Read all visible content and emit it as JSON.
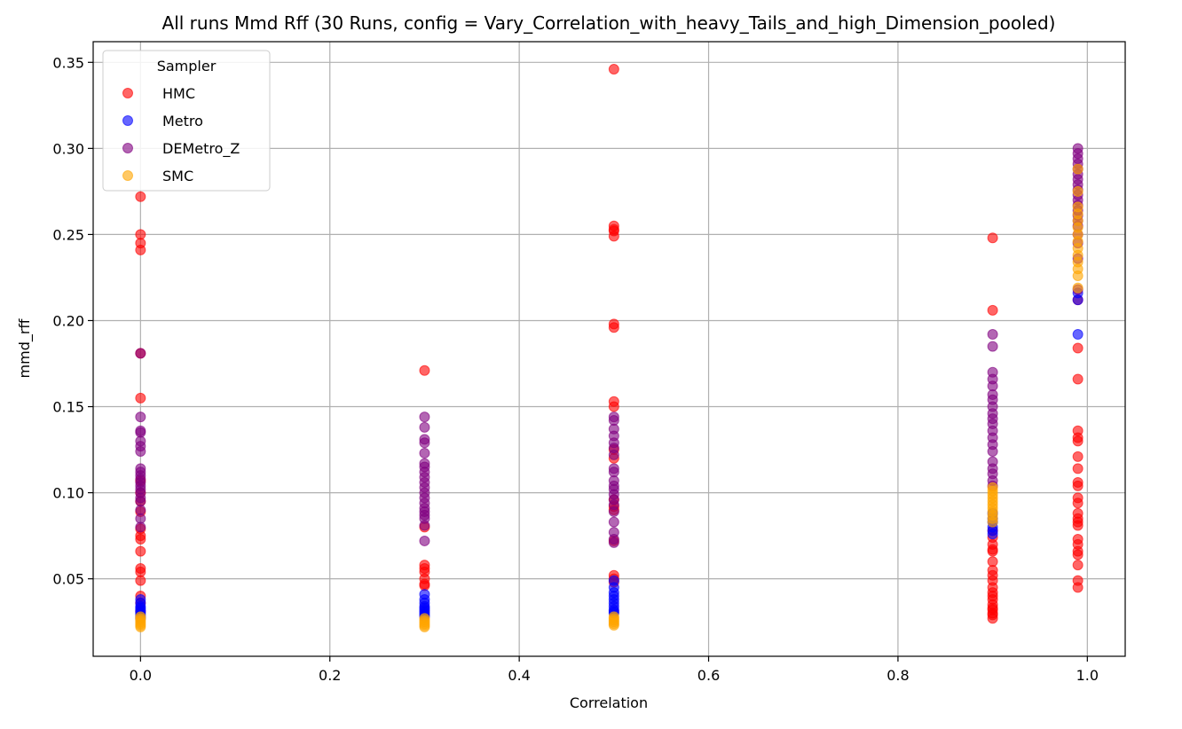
{
  "chart_data": {
    "type": "scatter",
    "title": "All runs Mmd Rff (30 Runs, config = Vary_Correlation_with_heavy_Tails_and_high_Dimension_pooled)",
    "xlabel": "Correlation",
    "ylabel": "mmd_rff",
    "xlim": [
      -0.05,
      1.04
    ],
    "ylim": [
      0.005,
      0.362
    ],
    "xticks": [
      "0.0",
      "0.2",
      "0.4",
      "0.6",
      "0.8",
      "1.0"
    ],
    "yticks": [
      "0.05",
      "0.10",
      "0.15",
      "0.20",
      "0.25",
      "0.30",
      "0.35"
    ],
    "grid": true,
    "legend": {
      "title": "Sampler",
      "placement": "upper-left"
    },
    "series": [
      {
        "name": "HMC",
        "color": "#ff0000",
        "points": [
          [
            0.0,
            0.272
          ],
          [
            0.0,
            0.25
          ],
          [
            0.0,
            0.245
          ],
          [
            0.0,
            0.241
          ],
          [
            0.0,
            0.181
          ],
          [
            0.0,
            0.155
          ],
          [
            0.0,
            0.107
          ],
          [
            0.0,
            0.1
          ],
          [
            0.0,
            0.095
          ],
          [
            0.0,
            0.089
          ],
          [
            0.0,
            0.079
          ],
          [
            0.0,
            0.075
          ],
          [
            0.0,
            0.073
          ],
          [
            0.0,
            0.066
          ],
          [
            0.0,
            0.056
          ],
          [
            0.0,
            0.054
          ],
          [
            0.0,
            0.049
          ],
          [
            0.0,
            0.04
          ],
          [
            0.0,
            0.036
          ],
          [
            0.0,
            0.031
          ],
          [
            0.3,
            0.171
          ],
          [
            0.3,
            0.08
          ],
          [
            0.3,
            0.058
          ],
          [
            0.3,
            0.056
          ],
          [
            0.3,
            0.054
          ],
          [
            0.3,
            0.05
          ],
          [
            0.3,
            0.047
          ],
          [
            0.3,
            0.046
          ],
          [
            0.5,
            0.346
          ],
          [
            0.5,
            0.255
          ],
          [
            0.5,
            0.253
          ],
          [
            0.5,
            0.252
          ],
          [
            0.5,
            0.249
          ],
          [
            0.5,
            0.198
          ],
          [
            0.5,
            0.196
          ],
          [
            0.5,
            0.153
          ],
          [
            0.5,
            0.15
          ],
          [
            0.5,
            0.125
          ],
          [
            0.5,
            0.12
          ],
          [
            0.5,
            0.096
          ],
          [
            0.5,
            0.092
          ],
          [
            0.5,
            0.09
          ],
          [
            0.5,
            0.072
          ],
          [
            0.5,
            0.052
          ],
          [
            0.5,
            0.05
          ],
          [
            0.5,
            0.048
          ],
          [
            0.9,
            0.248
          ],
          [
            0.9,
            0.206
          ],
          [
            0.9,
            0.078
          ],
          [
            0.9,
            0.074
          ],
          [
            0.9,
            0.07
          ],
          [
            0.9,
            0.067
          ],
          [
            0.9,
            0.066
          ],
          [
            0.9,
            0.06
          ],
          [
            0.9,
            0.055
          ],
          [
            0.9,
            0.052
          ],
          [
            0.9,
            0.049
          ],
          [
            0.9,
            0.045
          ],
          [
            0.9,
            0.042
          ],
          [
            0.9,
            0.04
          ],
          [
            0.9,
            0.038
          ],
          [
            0.9,
            0.035
          ],
          [
            0.9,
            0.033
          ],
          [
            0.9,
            0.032
          ],
          [
            0.9,
            0.03
          ],
          [
            0.9,
            0.029
          ],
          [
            0.9,
            0.027
          ],
          [
            0.99,
            0.212
          ],
          [
            0.99,
            0.184
          ],
          [
            0.99,
            0.166
          ],
          [
            0.99,
            0.136
          ],
          [
            0.99,
            0.132
          ],
          [
            0.99,
            0.13
          ],
          [
            0.99,
            0.121
          ],
          [
            0.99,
            0.114
          ],
          [
            0.99,
            0.106
          ],
          [
            0.99,
            0.104
          ],
          [
            0.99,
            0.097
          ],
          [
            0.99,
            0.094
          ],
          [
            0.99,
            0.088
          ],
          [
            0.99,
            0.085
          ],
          [
            0.99,
            0.083
          ],
          [
            0.99,
            0.081
          ],
          [
            0.99,
            0.073
          ],
          [
            0.99,
            0.07
          ],
          [
            0.99,
            0.066
          ],
          [
            0.99,
            0.064
          ],
          [
            0.99,
            0.058
          ],
          [
            0.99,
            0.049
          ],
          [
            0.99,
            0.045
          ]
        ]
      },
      {
        "name": "Metro",
        "color": "#0000ff",
        "points": [
          [
            0.0,
            0.038
          ],
          [
            0.0,
            0.036
          ],
          [
            0.0,
            0.034
          ],
          [
            0.0,
            0.033
          ],
          [
            0.0,
            0.032
          ],
          [
            0.0,
            0.031
          ],
          [
            0.0,
            0.03
          ],
          [
            0.0,
            0.029
          ],
          [
            0.0,
            0.028
          ],
          [
            0.0,
            0.027
          ],
          [
            0.3,
            0.041
          ],
          [
            0.3,
            0.038
          ],
          [
            0.3,
            0.036
          ],
          [
            0.3,
            0.034
          ],
          [
            0.3,
            0.033
          ],
          [
            0.3,
            0.032
          ],
          [
            0.3,
            0.031
          ],
          [
            0.3,
            0.03
          ],
          [
            0.3,
            0.029
          ],
          [
            0.3,
            0.028
          ],
          [
            0.5,
            0.049
          ],
          [
            0.5,
            0.045
          ],
          [
            0.5,
            0.042
          ],
          [
            0.5,
            0.04
          ],
          [
            0.5,
            0.038
          ],
          [
            0.5,
            0.036
          ],
          [
            0.5,
            0.034
          ],
          [
            0.5,
            0.032
          ],
          [
            0.5,
            0.031
          ],
          [
            0.5,
            0.03
          ],
          [
            0.9,
            0.088
          ],
          [
            0.9,
            0.085
          ],
          [
            0.9,
            0.083
          ],
          [
            0.9,
            0.08
          ],
          [
            0.9,
            0.078
          ],
          [
            0.9,
            0.076
          ],
          [
            0.99,
            0.216
          ],
          [
            0.99,
            0.212
          ],
          [
            0.99,
            0.192
          ]
        ]
      },
      {
        "name": "DEMetro_Z",
        "color": "#800080",
        "points": [
          [
            0.0,
            0.181
          ],
          [
            0.0,
            0.144
          ],
          [
            0.0,
            0.136
          ],
          [
            0.0,
            0.135
          ],
          [
            0.0,
            0.13
          ],
          [
            0.0,
            0.127
          ],
          [
            0.0,
            0.124
          ],
          [
            0.0,
            0.114
          ],
          [
            0.0,
            0.112
          ],
          [
            0.0,
            0.11
          ],
          [
            0.0,
            0.108
          ],
          [
            0.0,
            0.106
          ],
          [
            0.0,
            0.104
          ],
          [
            0.0,
            0.102
          ],
          [
            0.0,
            0.1
          ],
          [
            0.0,
            0.097
          ],
          [
            0.0,
            0.095
          ],
          [
            0.0,
            0.09
          ],
          [
            0.0,
            0.085
          ],
          [
            0.0,
            0.08
          ],
          [
            0.3,
            0.144
          ],
          [
            0.3,
            0.138
          ],
          [
            0.3,
            0.131
          ],
          [
            0.3,
            0.129
          ],
          [
            0.3,
            0.123
          ],
          [
            0.3,
            0.117
          ],
          [
            0.3,
            0.115
          ],
          [
            0.3,
            0.112
          ],
          [
            0.3,
            0.109
          ],
          [
            0.3,
            0.106
          ],
          [
            0.3,
            0.103
          ],
          [
            0.3,
            0.1
          ],
          [
            0.3,
            0.097
          ],
          [
            0.3,
            0.094
          ],
          [
            0.3,
            0.091
          ],
          [
            0.3,
            0.089
          ],
          [
            0.3,
            0.087
          ],
          [
            0.3,
            0.085
          ],
          [
            0.3,
            0.081
          ],
          [
            0.3,
            0.072
          ],
          [
            0.5,
            0.144
          ],
          [
            0.5,
            0.142
          ],
          [
            0.5,
            0.137
          ],
          [
            0.5,
            0.133
          ],
          [
            0.5,
            0.129
          ],
          [
            0.5,
            0.126
          ],
          [
            0.5,
            0.122
          ],
          [
            0.5,
            0.114
          ],
          [
            0.5,
            0.112
          ],
          [
            0.5,
            0.107
          ],
          [
            0.5,
            0.104
          ],
          [
            0.5,
            0.102
          ],
          [
            0.5,
            0.099
          ],
          [
            0.5,
            0.096
          ],
          [
            0.5,
            0.093
          ],
          [
            0.5,
            0.089
          ],
          [
            0.5,
            0.083
          ],
          [
            0.5,
            0.077
          ],
          [
            0.5,
            0.073
          ],
          [
            0.5,
            0.071
          ],
          [
            0.9,
            0.192
          ],
          [
            0.9,
            0.185
          ],
          [
            0.9,
            0.17
          ],
          [
            0.9,
            0.166
          ],
          [
            0.9,
            0.162
          ],
          [
            0.9,
            0.157
          ],
          [
            0.9,
            0.154
          ],
          [
            0.9,
            0.15
          ],
          [
            0.9,
            0.146
          ],
          [
            0.9,
            0.143
          ],
          [
            0.9,
            0.14
          ],
          [
            0.9,
            0.136
          ],
          [
            0.9,
            0.132
          ],
          [
            0.9,
            0.128
          ],
          [
            0.9,
            0.124
          ],
          [
            0.9,
            0.118
          ],
          [
            0.9,
            0.114
          ],
          [
            0.9,
            0.111
          ],
          [
            0.9,
            0.107
          ],
          [
            0.9,
            0.104
          ],
          [
            0.99,
            0.3
          ],
          [
            0.99,
            0.297
          ],
          [
            0.99,
            0.294
          ],
          [
            0.99,
            0.291
          ],
          [
            0.99,
            0.288
          ],
          [
            0.99,
            0.285
          ],
          [
            0.99,
            0.282
          ],
          [
            0.99,
            0.279
          ],
          [
            0.99,
            0.276
          ],
          [
            0.99,
            0.273
          ],
          [
            0.99,
            0.27
          ],
          [
            0.99,
            0.267
          ],
          [
            0.99,
            0.264
          ],
          [
            0.99,
            0.261
          ],
          [
            0.99,
            0.258
          ],
          [
            0.99,
            0.255
          ],
          [
            0.99,
            0.25
          ],
          [
            0.99,
            0.245
          ],
          [
            0.99,
            0.236
          ],
          [
            0.99,
            0.218
          ]
        ]
      },
      {
        "name": "SMC",
        "color": "#ffa500",
        "points": [
          [
            0.0,
            0.028
          ],
          [
            0.0,
            0.027
          ],
          [
            0.0,
            0.026
          ],
          [
            0.0,
            0.025
          ],
          [
            0.0,
            0.024
          ],
          [
            0.0,
            0.023
          ],
          [
            0.0,
            0.022
          ],
          [
            0.3,
            0.027
          ],
          [
            0.3,
            0.026
          ],
          [
            0.3,
            0.025
          ],
          [
            0.3,
            0.024
          ],
          [
            0.3,
            0.023
          ],
          [
            0.3,
            0.022
          ],
          [
            0.5,
            0.028
          ],
          [
            0.5,
            0.027
          ],
          [
            0.5,
            0.026
          ],
          [
            0.5,
            0.025
          ],
          [
            0.5,
            0.024
          ],
          [
            0.5,
            0.023
          ],
          [
            0.9,
            0.103
          ],
          [
            0.9,
            0.101
          ],
          [
            0.9,
            0.099
          ],
          [
            0.9,
            0.097
          ],
          [
            0.9,
            0.095
          ],
          [
            0.9,
            0.093
          ],
          [
            0.9,
            0.091
          ],
          [
            0.9,
            0.089
          ],
          [
            0.9,
            0.087
          ],
          [
            0.9,
            0.085
          ],
          [
            0.9,
            0.083
          ],
          [
            0.99,
            0.288
          ],
          [
            0.99,
            0.275
          ],
          [
            0.99,
            0.266
          ],
          [
            0.99,
            0.262
          ],
          [
            0.99,
            0.258
          ],
          [
            0.99,
            0.254
          ],
          [
            0.99,
            0.25
          ],
          [
            0.99,
            0.246
          ],
          [
            0.99,
            0.242
          ],
          [
            0.99,
            0.238
          ],
          [
            0.99,
            0.234
          ],
          [
            0.99,
            0.23
          ],
          [
            0.99,
            0.226
          ],
          [
            0.99,
            0.219
          ]
        ]
      }
    ]
  }
}
